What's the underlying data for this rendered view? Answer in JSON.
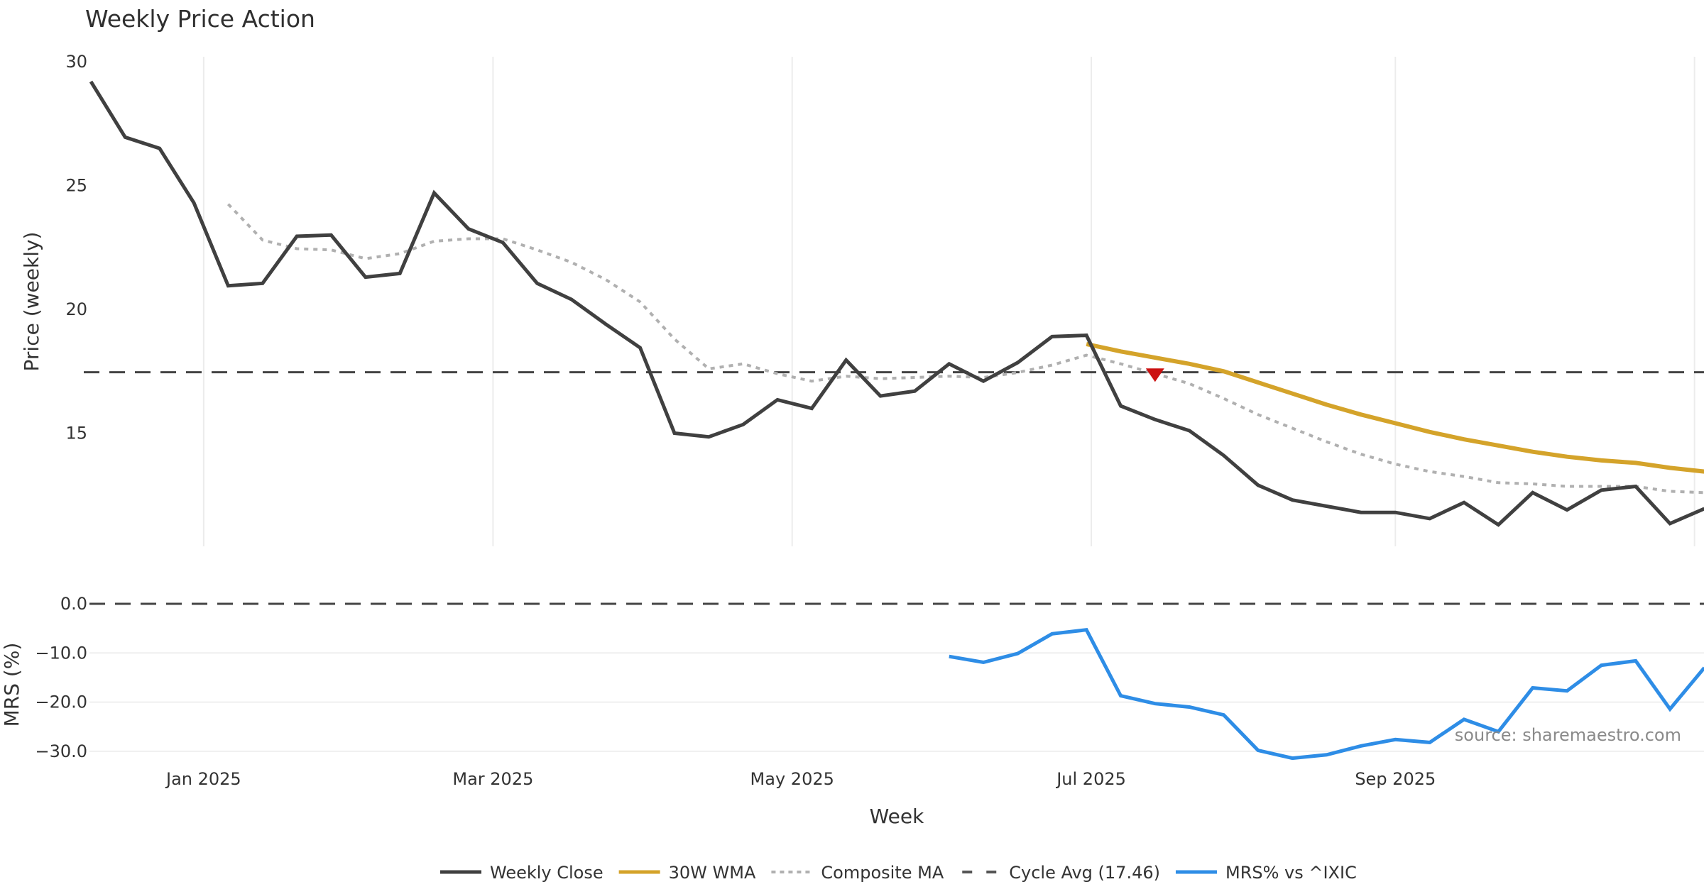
{
  "chart_data": [
    {
      "type": "line",
      "title": "Weekly Price Action",
      "xlabel": "Week",
      "ylabel": "Price (weekly)",
      "ylim": [
        10,
        30
      ],
      "yticks": [
        15,
        20,
        25,
        30
      ],
      "x_start_week": "2024-12-09",
      "x_tick_labels": [
        "Jan 2025",
        "Mar 2025",
        "May 2025",
        "Jul 2025",
        "Sep 2025",
        ""
      ],
      "x_tick_dates": [
        "2025-01-01",
        "2025-03-01",
        "2025-05-01",
        "2025-07-01",
        "2025-09-01",
        "2025-11-01"
      ],
      "grid": true,
      "series": [
        {
          "name": "Weekly Close",
          "color": "#404040",
          "style": "solid",
          "start_index": 0,
          "values": [
            29.2,
            26.95,
            26.5,
            24.3,
            20.95,
            21.05,
            22.95,
            23.0,
            21.3,
            21.45,
            24.7,
            23.25,
            22.7,
            21.05,
            20.4,
            19.4,
            18.45,
            15.0,
            14.85,
            15.35,
            16.35,
            16.0,
            17.95,
            16.5,
            16.7,
            17.8,
            17.1,
            17.85,
            18.9,
            18.95,
            16.1,
            15.55,
            15.1,
            14.1,
            12.9,
            12.3,
            12.05,
            11.8,
            11.8,
            11.55,
            12.2,
            11.3,
            12.6,
            11.9,
            12.7,
            12.85,
            11.35,
            11.95
          ]
        },
        {
          "name": "30W WMA",
          "color": "#d4a32a",
          "style": "solid",
          "start_index": 29,
          "values": [
            18.6,
            18.3,
            18.05,
            17.8,
            17.5,
            17.05,
            16.6,
            16.15,
            15.75,
            15.4,
            15.05,
            14.75,
            14.5,
            14.25,
            14.05,
            13.9,
            13.8,
            13.6,
            13.45
          ]
        },
        {
          "name": "Composite MA",
          "color": "#b0b0b0",
          "style": "dotted",
          "start_index": 4,
          "values": [
            24.25,
            22.8,
            22.45,
            22.4,
            22.05,
            22.25,
            22.75,
            22.85,
            22.85,
            22.4,
            21.9,
            21.2,
            20.3,
            18.8,
            17.6,
            17.8,
            17.4,
            17.1,
            17.3,
            17.2,
            17.25,
            17.3,
            17.25,
            17.45,
            17.75,
            18.15,
            17.8,
            17.4,
            17.0,
            16.4,
            15.75,
            15.2,
            14.65,
            14.15,
            13.75,
            13.45,
            13.25,
            13.0,
            12.95,
            12.85,
            12.85,
            12.85,
            12.65,
            12.6
          ]
        }
      ],
      "reference_lines": [
        {
          "name": "Cycle Avg (17.46)",
          "value": 17.46,
          "color": "#444444",
          "style": "dashed"
        }
      ],
      "markers": [
        {
          "name": "sell-signal",
          "shape": "triangle-down",
          "index": 31,
          "value": 17.3,
          "color": "#cc1111"
        }
      ]
    },
    {
      "type": "line",
      "ylabel": "MRS (%)",
      "ylim": [
        -33,
        1
      ],
      "yticks": [
        0.0,
        -10.0,
        -20.0,
        -30.0
      ],
      "ytick_labels": [
        "0.0",
        "−10.0",
        "−20.0",
        "−30.0"
      ],
      "series": [
        {
          "name": "MRS% vs ^IXIC",
          "color": "#2e8de6",
          "style": "solid",
          "start_index": 25,
          "values": [
            -10.7,
            -11.9,
            -10.1,
            -6.1,
            -5.3,
            -18.7,
            -20.3,
            -21.0,
            -22.6,
            -29.8,
            -31.4,
            -30.7,
            -28.9,
            -27.6,
            -28.2,
            -23.5,
            -26.0,
            -17.1,
            -17.7,
            -12.5,
            -11.6,
            -21.4,
            -13.0
          ]
        }
      ],
      "reference_lines": [
        {
          "name": "zero",
          "value": 0.0,
          "color": "#444444",
          "style": "dashed"
        }
      ],
      "annotation": "source: sharemaestro.com"
    }
  ],
  "legend": {
    "placement": "bottom-center",
    "items": [
      {
        "label": "Weekly Close",
        "color": "#404040",
        "style": "solid"
      },
      {
        "label": "30W WMA",
        "color": "#d4a32a",
        "style": "solid"
      },
      {
        "label": "Composite MA",
        "color": "#b0b0b0",
        "style": "dotted"
      },
      {
        "label": "Cycle Avg (17.46)",
        "color": "#555555",
        "style": "dashed"
      },
      {
        "label": "MRS% vs ^IXIC",
        "color": "#2e8de6",
        "style": "solid"
      }
    ]
  }
}
